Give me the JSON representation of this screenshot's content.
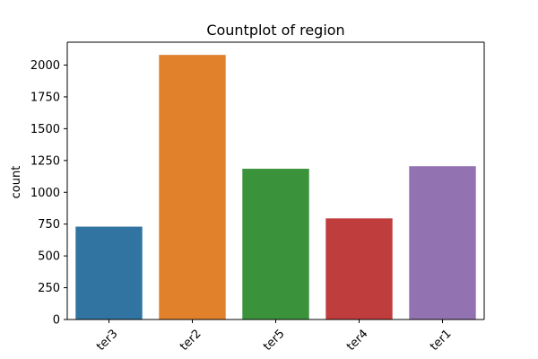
{
  "chart_data": {
    "type": "bar",
    "title": "Countplot of region",
    "xlabel": "",
    "ylabel": "count",
    "categories": [
      "ter3",
      "ter2",
      "ter5",
      "ter4",
      "ter1"
    ],
    "values": [
      730,
      2080,
      1185,
      795,
      1205
    ],
    "colors": [
      "#3274a1",
      "#e1812c",
      "#3a923a",
      "#c03d3e",
      "#9372b2"
    ],
    "ylim": [
      0,
      2180
    ],
    "yticks": [
      0,
      250,
      500,
      750,
      1000,
      1250,
      1500,
      1750,
      2000
    ],
    "xtick_rotation": 45,
    "grid": false,
    "legend": "none"
  }
}
